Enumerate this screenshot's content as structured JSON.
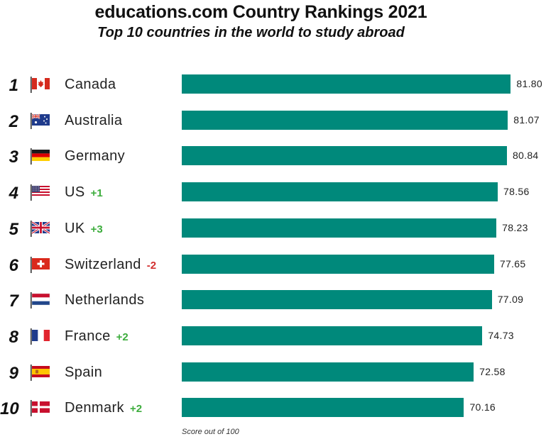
{
  "header": {
    "title": "educations.com Country Rankings 2021",
    "subtitle": "Top 10 countries in the world to study abroad"
  },
  "colors": {
    "bar": "#00897b",
    "increase": "#3dad3d",
    "decrease": "#d32f2f"
  },
  "chart_data": {
    "type": "bar",
    "orientation": "horizontal",
    "title": "educations.com Country Rankings 2021",
    "subtitle": "Top 10 countries in the world to study abroad",
    "categories": [
      "Canada",
      "Australia",
      "Germany",
      "US",
      "UK",
      "Switzerland",
      "Netherlands",
      "France",
      "Spain",
      "Denmark"
    ],
    "values": [
      81.8,
      81.07,
      80.84,
      78.56,
      78.23,
      77.65,
      77.09,
      74.73,
      72.58,
      70.16
    ],
    "value_labels": [
      "81.80",
      "81.07",
      "80.84",
      "78.56",
      "78.23",
      "77.65",
      "77.09",
      "74.73",
      "72.58",
      "70.16"
    ],
    "ranks": [
      "1",
      "2",
      "3",
      "4",
      "5",
      "6",
      "7",
      "8",
      "9",
      "10"
    ],
    "rank_changes": [
      "",
      "",
      "",
      "+1",
      "+3",
      "-2",
      "",
      "+2",
      "",
      "+2"
    ],
    "flag_icons": [
      "canada-flag-icon",
      "australia-flag-icon",
      "germany-flag-icon",
      "us-flag-icon",
      "uk-flag-icon",
      "switzerland-flag-icon",
      "netherlands-flag-icon",
      "france-flag-icon",
      "spain-flag-icon",
      "denmark-flag-icon"
    ],
    "xlim": [
      0,
      100
    ],
    "xlabel": "Score out of 100",
    "grid": false,
    "legend": "none"
  },
  "footnote": "Score out of 100"
}
